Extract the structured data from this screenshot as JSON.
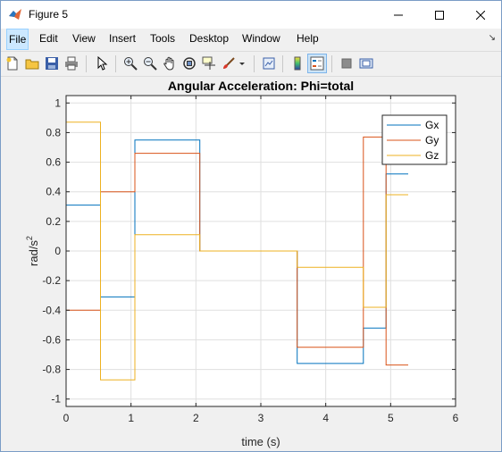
{
  "window": {
    "title": "Figure 5",
    "buttons": [
      "minimize",
      "maximize",
      "close"
    ]
  },
  "menu": [
    "File",
    "Edit",
    "View",
    "Insert",
    "Tools",
    "Desktop",
    "Window",
    "Help"
  ],
  "toolbar": {
    "icons": [
      "new-figure-icon",
      "open-icon",
      "save-icon",
      "print-icon",
      "pointer-icon",
      "zoom-in-icon",
      "zoom-out-icon",
      "pan-icon",
      "rotate-3d-icon",
      "data-cursor-icon",
      "brush-icon",
      "brush-dropdown-icon",
      "link-plot-icon",
      "colorbar-icon",
      "legend-icon",
      "hide-plot-tools-icon",
      "show-plot-tools-icon"
    ],
    "pressed": [
      "legend-icon"
    ]
  },
  "chart_data": {
    "type": "line",
    "title": "Angular Acceleration: Phi=total",
    "xlabel": "time (s)",
    "ylabel": "rad/s",
    "ylabel_superscript": "2",
    "xlim": [
      0,
      6
    ],
    "ylim": [
      -1.05,
      1.05
    ],
    "xticks": [
      "0",
      "1",
      "2",
      "3",
      "4",
      "5",
      "6"
    ],
    "yticks": [
      "-1",
      "-0.8",
      "-0.6",
      "-0.4",
      "-0.2",
      "0",
      "0.2",
      "0.4",
      "0.6",
      "0.8",
      "1"
    ],
    "grid": true,
    "legend_position": "top-right",
    "series": [
      {
        "name": "Gx",
        "color": "#0072bd",
        "step": true,
        "points": [
          [
            0,
            0.31
          ],
          [
            0.53,
            0.31
          ],
          [
            0.53,
            -0.31
          ],
          [
            1.06,
            -0.31
          ],
          [
            1.06,
            0.75
          ],
          [
            2.06,
            0.75
          ],
          [
            2.06,
            0
          ],
          [
            3.56,
            0
          ],
          [
            3.56,
            -0.76
          ],
          [
            4.58,
            -0.76
          ],
          [
            4.58,
            -0.52
          ],
          [
            4.93,
            -0.52
          ],
          [
            4.93,
            0.52
          ],
          [
            5.27,
            0.52
          ]
        ]
      },
      {
        "name": "Gy",
        "color": "#d95319",
        "step": true,
        "points": [
          [
            0,
            -0.4
          ],
          [
            0.53,
            -0.4
          ],
          [
            0.53,
            0.4
          ],
          [
            1.06,
            0.4
          ],
          [
            1.06,
            0.66
          ],
          [
            2.06,
            0.66
          ],
          [
            2.06,
            0
          ],
          [
            3.56,
            0
          ],
          [
            3.56,
            -0.65
          ],
          [
            4.58,
            -0.65
          ],
          [
            4.58,
            0.77
          ],
          [
            4.93,
            0.77
          ],
          [
            4.93,
            -0.77
          ],
          [
            5.27,
            -0.77
          ]
        ]
      },
      {
        "name": "Gz",
        "color": "#edb120",
        "step": true,
        "points": [
          [
            0,
            0.87
          ],
          [
            0.53,
            0.87
          ],
          [
            0.53,
            -0.87
          ],
          [
            1.06,
            -0.87
          ],
          [
            1.06,
            0.11
          ],
          [
            2.06,
            0.11
          ],
          [
            2.06,
            0
          ],
          [
            3.56,
            0
          ],
          [
            3.56,
            -0.11
          ],
          [
            4.58,
            -0.11
          ],
          [
            4.58,
            -0.38
          ],
          [
            4.93,
            -0.38
          ],
          [
            4.93,
            0.38
          ],
          [
            5.27,
            0.38
          ]
        ]
      }
    ]
  }
}
